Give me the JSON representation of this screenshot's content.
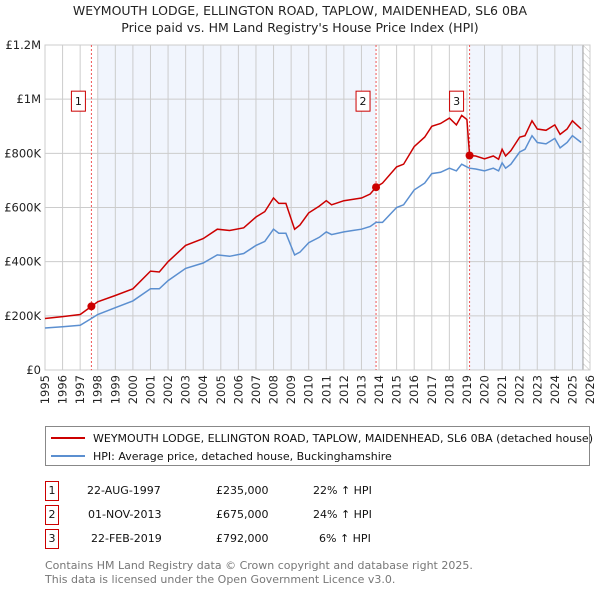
{
  "chart_data": {
    "type": "line",
    "title": "WEYMOUTH LODGE, ELLINGTON ROAD, TAPLOW, MAIDENHEAD, SL6 0BA",
    "subtitle": "Price paid vs. HM Land Registry's House Price Index (HPI)",
    "xlim": [
      1995,
      2026
    ],
    "ylim": [
      0,
      1200000
    ],
    "x_ticks": [
      "1995",
      "1996",
      "1997",
      "1998",
      "1999",
      "2000",
      "2001",
      "2002",
      "2003",
      "2004",
      "2005",
      "2006",
      "2007",
      "2008",
      "2009",
      "2010",
      "2011",
      "2012",
      "2013",
      "2014",
      "2015",
      "2016",
      "2017",
      "2018",
      "2019",
      "2020",
      "2021",
      "2022",
      "2023",
      "2024",
      "2025",
      "2026"
    ],
    "y_ticks": [
      {
        "v": 0,
        "label": "£0"
      },
      {
        "v": 200000,
        "label": "£200K"
      },
      {
        "v": 400000,
        "label": "£400K"
      },
      {
        "v": 600000,
        "label": "£600K"
      },
      {
        "v": 800000,
        "label": "£800K"
      },
      {
        "v": 1000000,
        "label": "£1M"
      },
      {
        "v": 1200000,
        "label": "£1.2M"
      }
    ],
    "grid": true,
    "series": [
      {
        "name": "WEYMOUTH LODGE, ELLINGTON ROAD, TAPLOW, MAIDENHEAD, SL6 0BA (detached house)",
        "color": "#cc0000",
        "x": [
          1995,
          1996,
          1997,
          1997.64,
          1998,
          1999,
          2000,
          2001,
          2001.5,
          2002,
          2003,
          2004,
          2004.8,
          2005.5,
          2006.3,
          2007,
          2007.5,
          2008,
          2008.3,
          2008.7,
          2009.2,
          2009.5,
          2010,
          2010.6,
          2011,
          2011.3,
          2012,
          2012.5,
          2013,
          2013.5,
          2013.83,
          2014.2,
          2015,
          2015.4,
          2016,
          2016.6,
          2017,
          2017.5,
          2018,
          2018.4,
          2018.7,
          2019.0,
          2019.15,
          2019.5,
          2020,
          2020.5,
          2020.8,
          2021,
          2021.2,
          2021.5,
          2022,
          2022.3,
          2022.7,
          2023,
          2023.5,
          2024,
          2024.3,
          2024.7,
          2025,
          2025.5
        ],
        "y": [
          190000,
          197000,
          205000,
          235000,
          252000,
          275000,
          300000,
          365000,
          362000,
          400000,
          460000,
          485000,
          520000,
          515000,
          525000,
          565000,
          585000,
          635000,
          615000,
          615000,
          520000,
          535000,
          580000,
          605000,
          625000,
          610000,
          625000,
          630000,
          635000,
          650000,
          675000,
          690000,
          750000,
          760000,
          825000,
          860000,
          900000,
          910000,
          930000,
          905000,
          940000,
          925000,
          792000,
          790000,
          780000,
          790000,
          778000,
          815000,
          790000,
          810000,
          860000,
          865000,
          920000,
          890000,
          885000,
          905000,
          870000,
          890000,
          920000,
          890000
        ]
      },
      {
        "name": "HPI: Average price, detached house, Buckinghamshire",
        "color": "#5b8fd0",
        "x": [
          1995,
          1996,
          1997,
          1997.64,
          1998,
          1999,
          2000,
          2001,
          2001.5,
          2002,
          2003,
          2004,
          2004.8,
          2005.5,
          2006.3,
          2007,
          2007.5,
          2008,
          2008.3,
          2008.7,
          2009.2,
          2009.5,
          2010,
          2010.6,
          2011,
          2011.3,
          2012,
          2012.5,
          2013,
          2013.5,
          2013.83,
          2014.2,
          2015,
          2015.4,
          2016,
          2016.6,
          2017,
          2017.5,
          2018,
          2018.4,
          2018.7,
          2019.0,
          2019.15,
          2019.5,
          2020,
          2020.5,
          2020.8,
          2021,
          2021.2,
          2021.5,
          2022,
          2022.3,
          2022.7,
          2023,
          2023.5,
          2024,
          2024.3,
          2024.7,
          2025,
          2025.5
        ],
        "y": [
          155000,
          160000,
          165000,
          190000,
          205000,
          230000,
          255000,
          300000,
          300000,
          330000,
          375000,
          395000,
          425000,
          420000,
          430000,
          460000,
          475000,
          520000,
          505000,
          505000,
          425000,
          435000,
          470000,
          490000,
          510000,
          500000,
          510000,
          515000,
          520000,
          530000,
          545000,
          545000,
          600000,
          610000,
          665000,
          690000,
          725000,
          730000,
          745000,
          735000,
          760000,
          750000,
          745000,
          742000,
          735000,
          745000,
          735000,
          765000,
          745000,
          760000,
          805000,
          815000,
          865000,
          840000,
          835000,
          855000,
          820000,
          840000,
          865000,
          840000
        ]
      }
    ],
    "sales": [
      {
        "id": "1",
        "x": 1997.64,
        "y": 235000,
        "date": "22-AUG-1997",
        "price": "£235,000",
        "hpi": "22% ↑ HPI"
      },
      {
        "id": "2",
        "x": 2013.83,
        "y": 675000,
        "date": "01-NOV-2013",
        "price": "£675,000",
        "hpi": "24% ↑ HPI"
      },
      {
        "id": "3",
        "x": 2019.15,
        "y": 792000,
        "date": "22-FEB-2019",
        "price": "£792,000",
        "hpi": "6% ↑ HPI"
      }
    ],
    "shaded_periods": [
      [
        1998,
        2013.83
      ],
      [
        2019.15,
        2025.6
      ]
    ],
    "projection_start": 2025.6,
    "legend_placement": "below"
  },
  "footer": {
    "line1": "Contains HM Land Registry data © Crown copyright and database right 2025.",
    "line2": "This data is licensed under the Open Government Licence v3.0."
  }
}
